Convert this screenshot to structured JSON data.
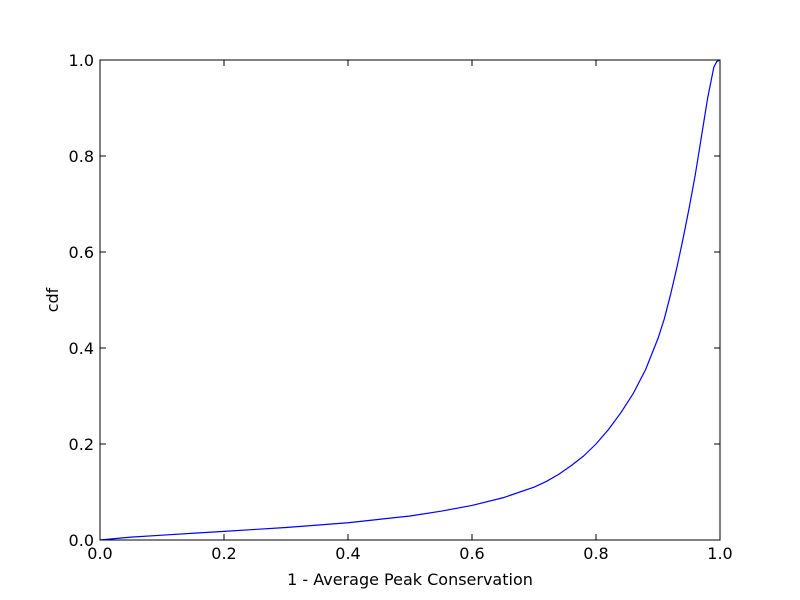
{
  "chart_data": {
    "type": "line",
    "title": "",
    "xlabel": "1 - Average Peak Conservation",
    "ylabel": "cdf",
    "xlim": [
      0.0,
      1.0
    ],
    "ylim": [
      0.0,
      1.0
    ],
    "xticks": [
      {
        "value": 0.0,
        "label": "0.0"
      },
      {
        "value": 0.2,
        "label": "0.2"
      },
      {
        "value": 0.4,
        "label": "0.4"
      },
      {
        "value": 0.6,
        "label": "0.6"
      },
      {
        "value": 0.8,
        "label": "0.8"
      },
      {
        "value": 1.0,
        "label": "1.0"
      }
    ],
    "yticks": [
      {
        "value": 0.0,
        "label": "0.0"
      },
      {
        "value": 0.2,
        "label": "0.2"
      },
      {
        "value": 0.4,
        "label": "0.4"
      },
      {
        "value": 0.6,
        "label": "0.6"
      },
      {
        "value": 0.8,
        "label": "0.8"
      },
      {
        "value": 1.0,
        "label": "1.0"
      }
    ],
    "grid": false,
    "legend": "none",
    "series": [
      {
        "color": "#0000ff",
        "x": [
          0.0,
          0.05,
          0.1,
          0.15,
          0.2,
          0.25,
          0.3,
          0.35,
          0.4,
          0.45,
          0.5,
          0.55,
          0.6,
          0.65,
          0.7,
          0.72,
          0.74,
          0.76,
          0.78,
          0.8,
          0.82,
          0.84,
          0.86,
          0.88,
          0.9,
          0.91,
          0.92,
          0.93,
          0.94,
          0.95,
          0.96,
          0.97,
          0.98,
          0.99,
          0.995,
          1.0
        ],
        "y": [
          0.0,
          0.006,
          0.01,
          0.014,
          0.018,
          0.022,
          0.026,
          0.031,
          0.036,
          0.043,
          0.05,
          0.06,
          0.072,
          0.088,
          0.11,
          0.122,
          0.137,
          0.155,
          0.175,
          0.2,
          0.23,
          0.265,
          0.305,
          0.355,
          0.42,
          0.46,
          0.51,
          0.565,
          0.625,
          0.69,
          0.76,
          0.84,
          0.92,
          0.985,
          0.997,
          1.0
        ]
      }
    ]
  }
}
